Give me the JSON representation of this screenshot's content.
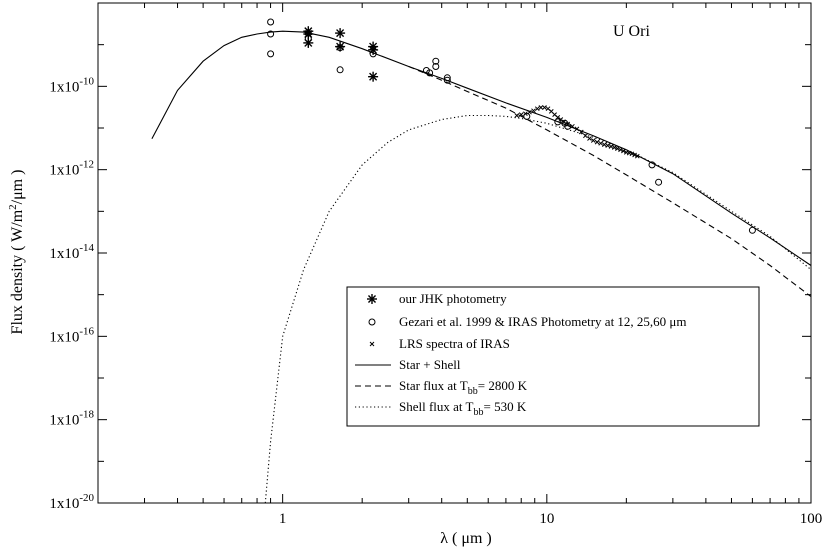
{
  "chart_data": {
    "type": "scatter",
    "title": "",
    "annotation": "U Ori",
    "xlabel_prefix": "λ",
    "xlabel_units": "( μm )",
    "ylabel_prefix": "Flux density",
    "ylabel_units": "( W/m",
    "ylabel_sup": "2",
    "ylabel_tail": "/μm )",
    "x_scale": "log",
    "y_scale": "log",
    "xlim": [
      0.2,
      100
    ],
    "ylim": [
      1e-20,
      1e-08
    ],
    "x_ticks": [
      {
        "value": 1,
        "label": "1"
      },
      {
        "value": 10,
        "label": "10"
      },
      {
        "value": 100,
        "label": "100"
      }
    ],
    "y_ticks": [
      {
        "value": 1e-20,
        "mant": "1x10",
        "exp": "-20"
      },
      {
        "value": 1e-18,
        "mant": "1x10",
        "exp": "-18"
      },
      {
        "value": 1e-16,
        "mant": "1x10",
        "exp": "-16"
      },
      {
        "value": 1e-14,
        "mant": "1x10",
        "exp": "-14"
      },
      {
        "value": 1e-12,
        "mant": "1x10",
        "exp": "-12"
      },
      {
        "value": 1e-10,
        "mant": "1x10",
        "exp": "-10"
      }
    ],
    "grid": false,
    "legend_position": "lower-right",
    "legend": [
      {
        "marker": "asterisk",
        "text": "our JHK photometry"
      },
      {
        "marker": "circle",
        "text": "Gezari et al. 1999 & IRAS Photometry at 12, 25,60 μm"
      },
      {
        "marker": "x",
        "text": "LRS spectra of IRAS"
      },
      {
        "line": "solid",
        "text": "Star + Shell"
      },
      {
        "line": "dashed",
        "text": "Star flux  at T",
        "sub": "bb",
        "tail": "= 2800 K"
      },
      {
        "line": "dotted",
        "text": "Shell flux at T",
        "sub": "bb",
        "tail": "= 530 K"
      }
    ],
    "series": [
      {
        "name": "our JHK photometry",
        "marker": "asterisk",
        "points": [
          [
            1.25,
            2.1e-09
          ],
          [
            1.25,
            1.8e-09
          ],
          [
            1.25,
            1.1e-09
          ],
          [
            1.65,
            1.9e-09
          ],
          [
            1.65,
            9e-10
          ],
          [
            2.2,
            9e-10
          ],
          [
            2.2,
            7.5e-10
          ],
          [
            2.2,
            1.7e-10
          ]
        ]
      },
      {
        "name": "Gezari et al. 1999 & IRAS Photometry at 12, 25,60 μm",
        "marker": "circle",
        "points": [
          [
            0.9,
            3.5e-09
          ],
          [
            0.9,
            1.8e-09
          ],
          [
            0.9,
            6e-10
          ],
          [
            1.25,
            1.9e-09
          ],
          [
            1.25,
            1.4e-09
          ],
          [
            1.65,
            8.5e-10
          ],
          [
            1.65,
            2.5e-10
          ],
          [
            2.2,
            6e-10
          ],
          [
            3.5,
            2.4e-10
          ],
          [
            3.6,
            2.1e-10
          ],
          [
            3.8,
            4e-10
          ],
          [
            3.8,
            3e-10
          ],
          [
            4.2,
            1.6e-10
          ],
          [
            4.2,
            1.4e-10
          ],
          [
            8.4,
            1.9e-11
          ],
          [
            11,
            1.4e-11
          ],
          [
            11.7,
            1.3e-11
          ],
          [
            12,
            1.1e-11
          ],
          [
            25,
            1.3e-12
          ],
          [
            26.5,
            5e-13
          ],
          [
            60,
            3.5e-14
          ]
        ]
      },
      {
        "name": "LRS spectra of IRAS",
        "marker": "x",
        "points": [
          [
            7.7,
            2e-11
          ],
          [
            8.0,
            2.1e-11
          ],
          [
            8.3,
            2.2e-11
          ],
          [
            8.6,
            2.4e-11
          ],
          [
            8.9,
            2.6e-11
          ],
          [
            9.2,
            2.9e-11
          ],
          [
            9.5,
            3.1e-11
          ],
          [
            9.8,
            3.1e-11
          ],
          [
            10.1,
            2.9e-11
          ],
          [
            10.4,
            2.5e-11
          ],
          [
            10.7,
            2.1e-11
          ],
          [
            11.0,
            1.8e-11
          ],
          [
            11.3,
            1.6e-11
          ],
          [
            11.6,
            1.4e-11
          ],
          [
            12.0,
            1.25e-11
          ],
          [
            12.5,
            1.1e-11
          ],
          [
            13.0,
            9.5e-12
          ],
          [
            13.5,
            8e-12
          ],
          [
            14.0,
            6.5e-12
          ],
          [
            14.5,
            5.6e-12
          ],
          [
            15.0,
            5e-12
          ],
          [
            15.5,
            4.6e-12
          ],
          [
            16.0,
            4.3e-12
          ],
          [
            16.5,
            4e-12
          ],
          [
            17.0,
            3.8e-12
          ],
          [
            17.5,
            3.6e-12
          ],
          [
            18.0,
            3.4e-12
          ],
          [
            18.5,
            3.2e-12
          ],
          [
            19.0,
            3e-12
          ],
          [
            19.5,
            2.8e-12
          ],
          [
            20.0,
            2.6e-12
          ],
          [
            20.5,
            2.5e-12
          ],
          [
            21.0,
            2.4e-12
          ],
          [
            21.5,
            2.25e-12
          ],
          [
            22.0,
            2.1e-12
          ]
        ]
      },
      {
        "name": "Star + Shell",
        "line": "solid",
        "points": [
          [
            0.32,
            5.5e-12
          ],
          [
            0.4,
            8e-11
          ],
          [
            0.5,
            4e-10
          ],
          [
            0.6,
            9.5e-10
          ],
          [
            0.7,
            1.5e-09
          ],
          [
            0.8,
            1.8e-09
          ],
          [
            0.9,
            2e-09
          ],
          [
            1.0,
            2.1e-09
          ],
          [
            1.2,
            2e-09
          ],
          [
            1.5,
            1.5e-09
          ],
          [
            2.0,
            8e-10
          ],
          [
            3.0,
            3e-10
          ],
          [
            4.0,
            1.55e-10
          ],
          [
            5.0,
            9e-11
          ],
          [
            7.0,
            4e-11
          ],
          [
            10.0,
            1.8e-11
          ],
          [
            15.0,
            6.5e-12
          ],
          [
            20.0,
            3e-12
          ],
          [
            30.0,
            8e-13
          ],
          [
            50.0,
            9e-14
          ],
          [
            70.0,
            2.3e-14
          ],
          [
            100.0,
            5e-15
          ]
        ]
      },
      {
        "name": "Star flux  at Tbb= 2800 K",
        "line": "dashed",
        "points": [
          [
            3.0,
            3e-10
          ],
          [
            4.0,
            1.4e-10
          ],
          [
            5.0,
            7.5e-11
          ],
          [
            7.0,
            3e-11
          ],
          [
            10.0,
            9e-12
          ],
          [
            15.0,
            2.2e-12
          ],
          [
            20.0,
            7.5e-13
          ],
          [
            30.0,
            1.6e-13
          ],
          [
            50.0,
            2.2e-14
          ],
          [
            70.0,
            5e-15
          ],
          [
            100.0,
            9e-16
          ]
        ]
      },
      {
        "name": "Shell flux at Tbb= 530 K",
        "line": "dotted",
        "points": [
          [
            0.86,
            1e-20
          ],
          [
            0.9,
            3e-19
          ],
          [
            1.0,
            1e-16
          ],
          [
            1.2,
            4e-15
          ],
          [
            1.5,
            1e-13
          ],
          [
            2.0,
            1.3e-12
          ],
          [
            2.5,
            4.5e-12
          ],
          [
            3.0,
            9e-12
          ],
          [
            4.0,
            1.6e-11
          ],
          [
            5.0,
            2e-11
          ],
          [
            6.0,
            2e-11
          ],
          [
            7.0,
            1.9e-11
          ],
          [
            8.0,
            1.7e-11
          ],
          [
            10.0,
            1.3e-11
          ],
          [
            15.0,
            6e-12
          ],
          [
            20.0,
            3e-12
          ],
          [
            30.0,
            8.5e-13
          ],
          [
            50.0,
            1e-13
          ],
          [
            70.0,
            2.5e-14
          ],
          [
            100.0,
            4e-15
          ]
        ]
      }
    ]
  }
}
